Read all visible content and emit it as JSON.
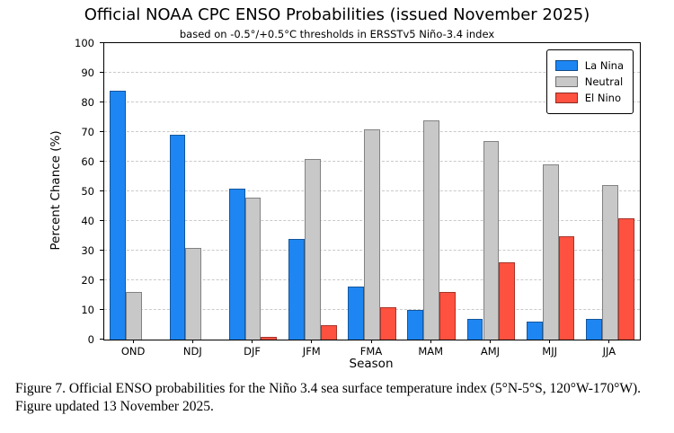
{
  "title": "Official NOAA CPC ENSO Probabilities (issued November 2025)",
  "subtitle": "based on -0.5°/+0.5°C thresholds in ERSSTv5 Niño-3.4 index",
  "chart_data": {
    "type": "bar",
    "categories": [
      "OND",
      "NDJ",
      "DJF",
      "JFM",
      "FMA",
      "MAM",
      "AMJ",
      "MJJ",
      "JJA"
    ],
    "series": [
      {
        "name": "La Nina",
        "color": "#1e86f2",
        "values": [
          84,
          69,
          51,
          34,
          18,
          10,
          7,
          6,
          7
        ]
      },
      {
        "name": "Neutral",
        "color": "#c8c8c8",
        "values": [
          16,
          31,
          48,
          61,
          71,
          74,
          67,
          59,
          52
        ]
      },
      {
        "name": "El Nino",
        "color": "#ff5140",
        "values": [
          0,
          0,
          1,
          5,
          11,
          16,
          26,
          35,
          41
        ]
      }
    ],
    "xlabel": "Season",
    "ylabel": "Percent Chance (%)",
    "ylim": [
      0,
      100
    ],
    "ytick_step": 10,
    "grid": "horizontal-dashed",
    "legend_position": "top-right"
  },
  "caption": "Figure 7. Official ENSO probabilities for the Niño 3.4 sea surface temperature index (5°N-5°S, 120°W-170°W). Figure updated 13 November 2025."
}
